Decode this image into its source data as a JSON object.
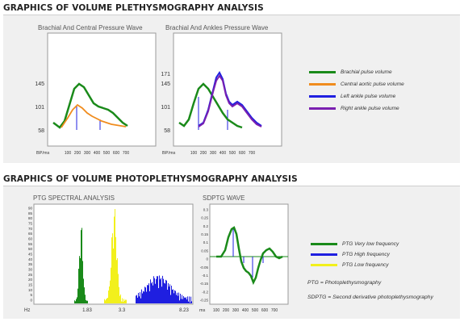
{
  "sections": {
    "plethysmography_title": "GRAPHICS OF VOLUME PLETHYSMOGRAPHY ANALYSIS",
    "photoplethysmography_title": "GRAPHICS OF VOLUME PHOTOPLETHYSMOGRAPHY ANALYSIS"
  },
  "colors": {
    "brachial": "#1a8a1a",
    "central_aortic": "#f08c1e",
    "left_ankle": "#1f1fe0",
    "right_ankle": "#7a1fb0",
    "ptg_very_low": "#1a8a1a",
    "ptg_high": "#1f1fe0",
    "ptg_low": "#f2f01c"
  },
  "charts": {
    "brachial_central": {
      "title": "Brachial And Central Pressure Wave",
      "y_ticks": [
        "145",
        "101",
        "58"
      ],
      "axis_unit_left": "BP/",
      "axis_unit_right": "ms",
      "x_ticks": [
        "100",
        "200",
        "300",
        "400",
        "500",
        "600",
        "700"
      ]
    },
    "brachial_ankles": {
      "title": "Brachial And Ankles Pressure Wave",
      "y_ticks": [
        "171",
        "145",
        "101",
        "58"
      ],
      "axis_unit_left": "BP/",
      "axis_unit_right": "ms",
      "x_ticks": [
        "100",
        "200",
        "300",
        "400",
        "500",
        "600",
        "700"
      ]
    },
    "ptg_spectral": {
      "title": "PTG SPECTRAL ANALYSIS",
      "y_ticks": [
        "90",
        "85",
        "80",
        "75",
        "70",
        "65",
        "60",
        "55",
        "50",
        "45",
        "40",
        "35",
        "30",
        "25",
        "20",
        "15",
        "10",
        "5",
        "0"
      ],
      "axis_unit": "Hz",
      "x_ticks": [
        "1.83",
        "3.3",
        "8.23"
      ]
    },
    "sdptg_wave": {
      "title": "SDPTG WAVE",
      "y_ticks": [
        "0.3",
        "0.25",
        "0.2",
        "0.15",
        "0.1",
        "0.05",
        "0",
        "-0.05",
        "-0.1",
        "-0.15",
        "-0.2",
        "-0.25"
      ],
      "axis_unit": "ms",
      "x_ticks": [
        "100",
        "200",
        "300",
        "400",
        "500",
        "600",
        "700"
      ]
    }
  },
  "legends": {
    "pleth": [
      {
        "label": "Brachial pulse volume",
        "color_key": "brachial"
      },
      {
        "label": "Central aortic pulse volume",
        "color_key": "central_aortic"
      },
      {
        "label": "Left ankle pulse volume",
        "color_key": "left_ankle"
      },
      {
        "label": "Right ankle pulse volume",
        "color_key": "right_ankle"
      }
    ],
    "ptg": [
      {
        "label": "PTG Very low frequency",
        "color_key": "ptg_very_low"
      },
      {
        "label": "PTG High frequency",
        "color_key": "ptg_high"
      },
      {
        "label": "PTG Low frequency",
        "color_key": "ptg_low"
      }
    ]
  },
  "notes": {
    "ptg": "PTG = Photoplethysmography",
    "sdptg": "SDPTG = Second derivative photoplethysmography"
  }
}
